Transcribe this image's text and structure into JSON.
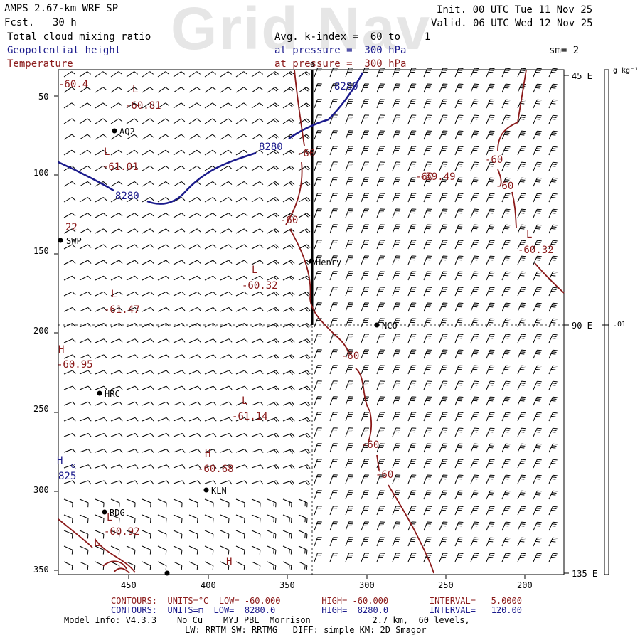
{
  "watermark": "Grid Nav",
  "header": {
    "model": "AMPS 2.67-km WRF SP",
    "fcst_label": "Fcst.",
    "fcst_value": "30 h",
    "init": "Init. 00 UTC Tue 11 Nov 25",
    "valid": "Valid. 06 UTC Wed 12 Nov 25",
    "field_shade": "Total cloud mixing ratio",
    "field_geo": "Geopotential height",
    "field_temp": "Temperature",
    "avg_k": "Avg. k-index =  60 to    1",
    "pressure1": "at pressure =  300 hPa",
    "pressure2": "at pressure =  300 hPa",
    "smooth": "sm= 2"
  },
  "colors": {
    "geopotential": "#1a1a8c",
    "temperature": "#8b1a1a",
    "text": "#000000"
  },
  "axes": {
    "y_ticks": [
      "50",
      "100",
      "150",
      "200",
      "250",
      "300",
      "350"
    ],
    "x_ticks": [
      "450",
      "400",
      "350",
      "300",
      "250",
      "200"
    ],
    "right_labels": [
      "45 E",
      "90 E",
      "135 E"
    ],
    "colorbar_unit": "g kg⁻¹",
    "colorbar_value": ".01",
    "top_mark": "0"
  },
  "stations": [
    {
      "name": "AQ2"
    },
    {
      "name": "SWP"
    },
    {
      "name": "Henry"
    },
    {
      "name": "NCO"
    },
    {
      "name": "HRC"
    },
    {
      "name": "KLN"
    },
    {
      "name": "RDG"
    }
  ],
  "temperature_labels": [
    "L",
    "-60.81",
    "L",
    "-61.01",
    "L",
    "-61.47",
    "L",
    "-60.32",
    "H",
    "-60.95",
    "L",
    "-61.14",
    "H",
    "-60.68",
    "L",
    "-60.92",
    "-59.49",
    "-60.32",
    "L",
    "-60",
    "-60",
    "-60",
    "-60",
    "-60",
    "-60",
    "-60",
    "-60",
    "H",
    "-60.4",
    "L"
  ],
  "height_labels": [
    "8280",
    "8280",
    "8280",
    "H",
    "825",
    "22"
  ],
  "footer": {
    "contours1": "CONTOURS:  UNITS=°C  LOW= -60.000        HIGH= -60.000        INTERVAL=   5.0000",
    "contours2": "CONTOURS:  UNITS=m  LOW=  8280.0         HIGH=  8280.0        INTERVAL=   120.00",
    "model_info": "Model Info: V4.3.3    No Cu    MYJ PBL  Morrison            2.7 km,  60 levels,",
    "physics": "LW: RRTM SW: RRTMG   DIFF: simple KM: 2D Smagor"
  }
}
